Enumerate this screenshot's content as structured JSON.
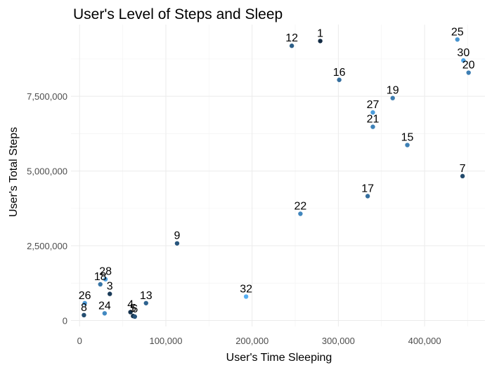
{
  "chart_data": {
    "type": "scatter",
    "title": "User's Level of Steps and Sleep",
    "xlabel": "User's Time Sleeping",
    "ylabel": "User's Total Steps",
    "xlim": [
      -10000,
      470000
    ],
    "ylim": [
      -200000,
      9900000
    ],
    "xticks": [
      0,
      100000,
      200000,
      300000,
      400000
    ],
    "xtick_labels": [
      "0",
      "100,000",
      "200,000",
      "300,000",
      "400,000"
    ],
    "yticks": [
      0,
      2500000,
      5000000,
      7500000
    ],
    "ytick_labels": [
      "0",
      "2,500,000",
      "5,000,000",
      "7,500,000"
    ],
    "grid": true,
    "legend": "none",
    "color_scale": [
      "#132b43",
      "#56b1f7"
    ],
    "points": [
      {
        "label": "1",
        "x": 279000,
        "y": 9350000,
        "shade": 0.0
      },
      {
        "label": "12",
        "x": 246000,
        "y": 9190000,
        "shade": 0.38
      },
      {
        "label": "25",
        "x": 438000,
        "y": 9400000,
        "shade": 0.78
      },
      {
        "label": "30",
        "x": 445000,
        "y": 8700000,
        "shade": 0.9
      },
      {
        "label": "20",
        "x": 451000,
        "y": 8290000,
        "shade": 0.62
      },
      {
        "label": "16",
        "x": 301000,
        "y": 8050000,
        "shade": 0.5
      },
      {
        "label": "19",
        "x": 363000,
        "y": 7440000,
        "shade": 0.6
      },
      {
        "label": "27",
        "x": 340000,
        "y": 6960000,
        "shade": 0.85
      },
      {
        "label": "21",
        "x": 340000,
        "y": 6480000,
        "shade": 0.65
      },
      {
        "label": "15",
        "x": 380000,
        "y": 5870000,
        "shade": 0.63
      },
      {
        "label": "7",
        "x": 444000,
        "y": 4830000,
        "shade": 0.23
      },
      {
        "label": "17",
        "x": 334000,
        "y": 4160000,
        "shade": 0.51
      },
      {
        "label": "22",
        "x": 256000,
        "y": 3570000,
        "shade": 0.68
      },
      {
        "label": "9",
        "x": 113000,
        "y": 2580000,
        "shade": 0.32
      },
      {
        "label": "32",
        "x": 193000,
        "y": 800000,
        "shade": 0.98
      },
      {
        "label": "13",
        "x": 77000,
        "y": 580000,
        "shade": 0.42
      },
      {
        "label": "28",
        "x": 30000,
        "y": 1380000,
        "shade": 0.88
      },
      {
        "label": "18",
        "x": 24000,
        "y": 1210000,
        "shade": 0.55
      },
      {
        "label": "3",
        "x": 35000,
        "y": 890000,
        "shade": 0.12
      },
      {
        "label": "26",
        "x": 6000,
        "y": 580000,
        "shade": 0.8
      },
      {
        "label": "8",
        "x": 5000,
        "y": 180000,
        "shade": 0.25
      },
      {
        "label": "24",
        "x": 29000,
        "y": 240000,
        "shade": 0.7
      },
      {
        "label": "4",
        "x": 59000,
        "y": 280000,
        "shade": 0.05
      },
      {
        "label": "5",
        "x": 62000,
        "y": 150000,
        "shade": 0.05
      },
      {
        "label": "6",
        "x": 64000,
        "y": 130000,
        "shade": 0.3
      }
    ]
  }
}
